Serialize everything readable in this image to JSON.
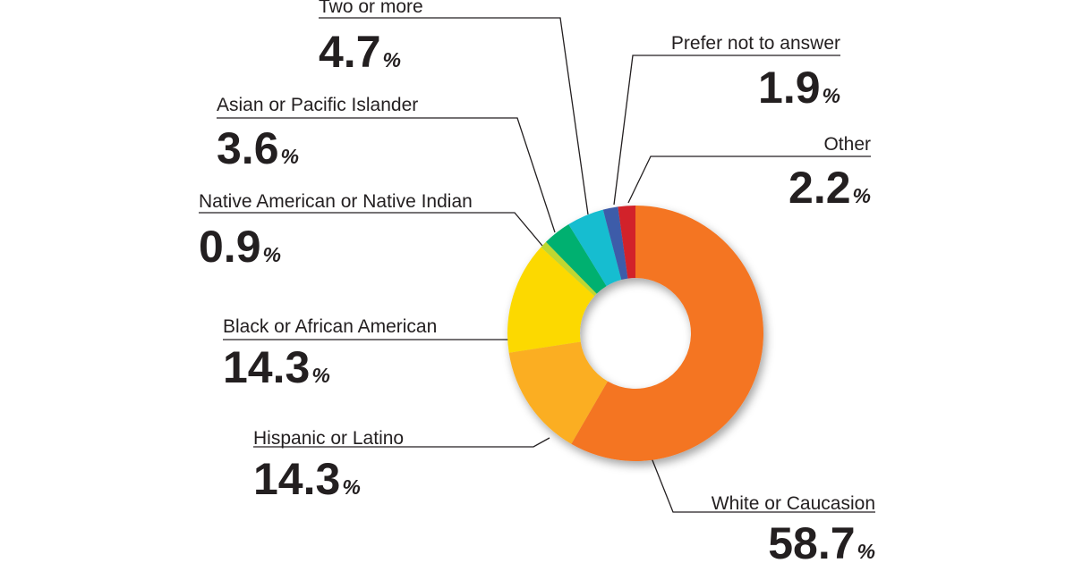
{
  "chart_data": {
    "type": "pie",
    "donut": true,
    "percent_symbol": "%",
    "slices": [
      {
        "label": "White or Caucasion",
        "value": 58.7,
        "value_text": "58.7",
        "color": "#f47421"
      },
      {
        "label": "Hispanic or Latino",
        "value": 14.3,
        "value_text": "14.3",
        "color": "#fbae22"
      },
      {
        "label": "Black or African American",
        "value": 14.3,
        "value_text": "14.3",
        "color": "#fcd900"
      },
      {
        "label": "Native American or Native Indian",
        "value": 0.9,
        "value_text": "0.9",
        "color": "#bfd730"
      },
      {
        "label": "Asian or Pacific Islander",
        "value": 3.6,
        "value_text": "3.6",
        "color": "#00b06f"
      },
      {
        "label": "Two or more",
        "value": 4.7,
        "value_text": "4.7",
        "color": "#14bdd0"
      },
      {
        "label": "Prefer not to answer",
        "value": 1.9,
        "value_text": "1.9",
        "color": "#3d5ba9"
      },
      {
        "label": "Other",
        "value": 2.2,
        "value_text": "2.2",
        "color": "#d2232a"
      }
    ]
  }
}
